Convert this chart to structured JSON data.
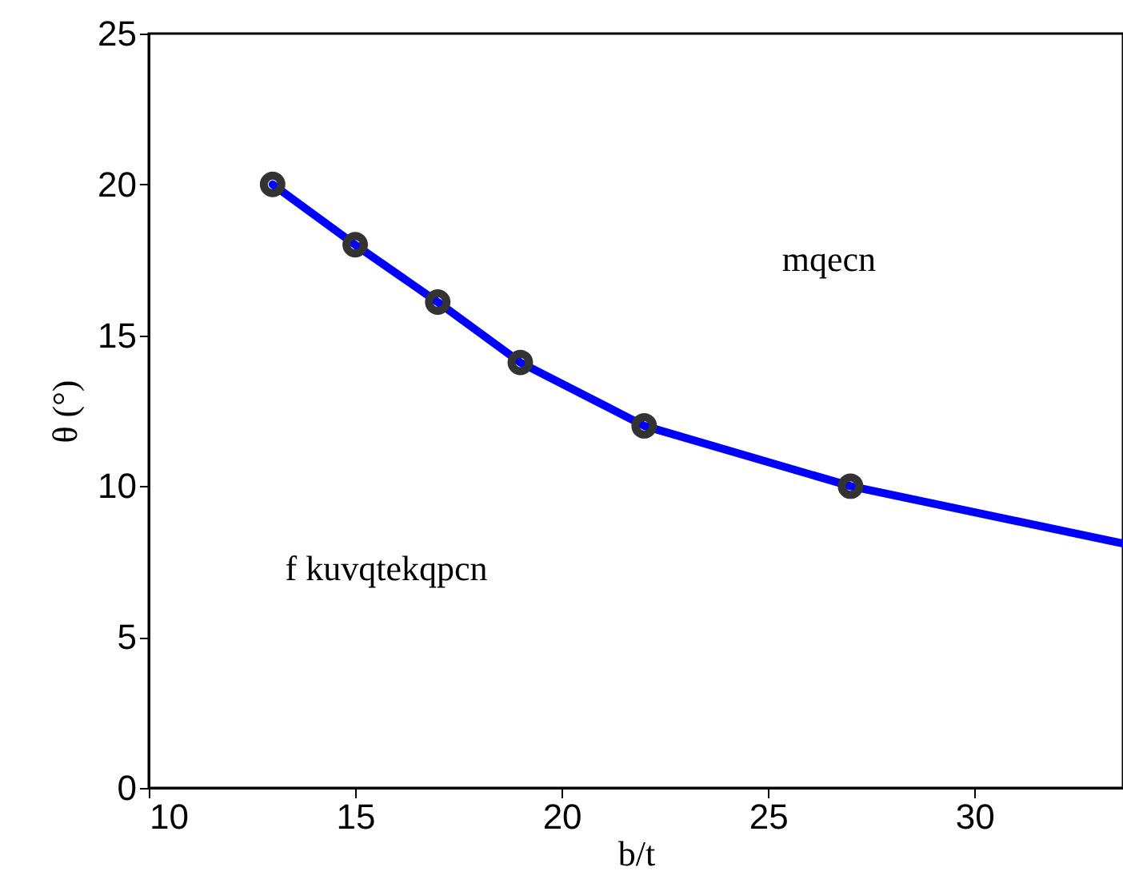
{
  "chart_data": {
    "type": "line",
    "xlabel": "b/t",
    "ylabel": "θ (°)",
    "annotations": [
      "mqecn",
      "f kuvqtekqpcn"
    ],
    "series": [
      {
        "color": "#0000ff",
        "x": [
          13,
          15,
          17,
          19,
          22,
          27,
          33.6
        ],
        "values": [
          20,
          18,
          16.1,
          14.1,
          12,
          10,
          8.1
        ],
        "marker": "none"
      },
      {
        "type": "scatter",
        "color": "#333333",
        "x": [
          13,
          15,
          17,
          19,
          22,
          27
        ],
        "values": [
          20,
          18,
          16.1,
          14.1,
          12,
          10
        ],
        "marker": "circle"
      }
    ],
    "xlim": [
      10,
      33.6
    ],
    "ylim": [
      0,
      25
    ],
    "xticks": [
      10,
      15,
      20,
      25,
      30
    ],
    "yticks": [
      0,
      5,
      10,
      15,
      20,
      25
    ],
    "grid": false
  }
}
